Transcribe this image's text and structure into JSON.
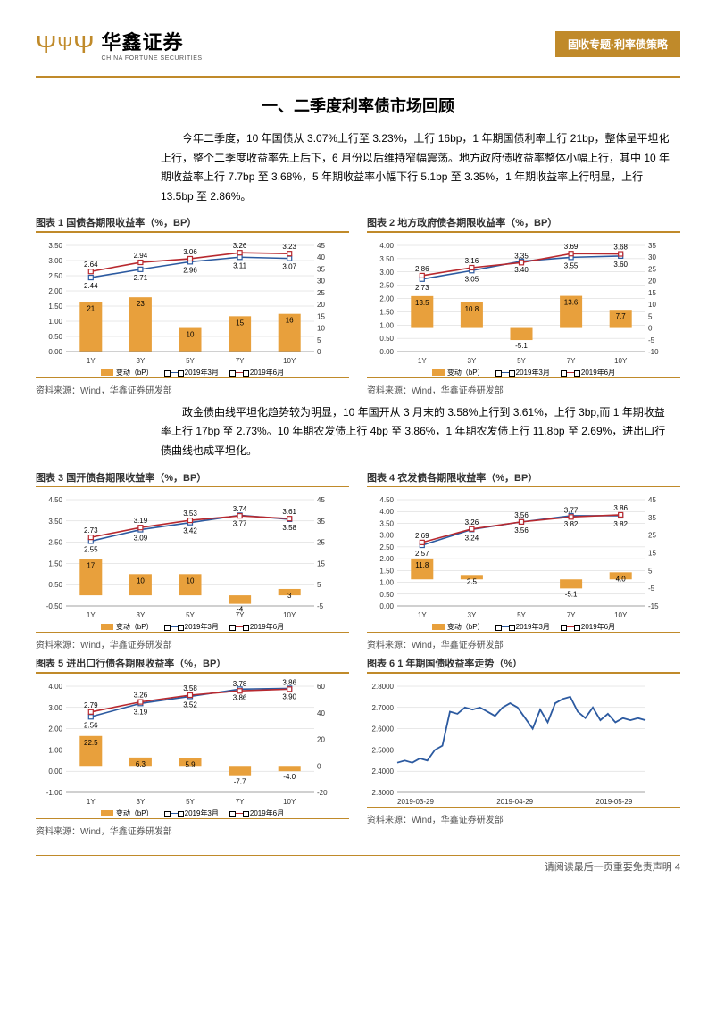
{
  "header": {
    "logo_cn": "华鑫证券",
    "logo_en": "CHINA FORTUNE SECURITIES",
    "tag": "固收专题·利率债策略"
  },
  "section_title": "一、二季度利率债市场回顾",
  "para1": "今年二季度，10 年国债从 3.07%上行至 3.23%，上行 16bp，1 年期国债利率上行 21bp，整体呈平坦化上行，整个二季度收益率先上后下，6 月份以后维持窄幅震荡。地方政府债收益率整体小幅上行，其中 10 年期收益率上行 7.7bp 至 3.68%，5 年期收益率小幅下行 5.1bp 至 3.35%，1 年期收益率上行明显，上行 13.5bp 至 2.86%。",
  "para2": "政金债曲线平坦化趋势较为明显，10 年国开从 3 月末的 3.58%上行到 3.61%，上行 3bp,而 1 年期收益率上行 17bp 至 2.73%。10 年期农发债上行 4bp 至 3.86%，1 年期农发债上行 11.8bp 至 2.69%，进出口行债曲线也成平坦化。",
  "colors": {
    "brand": "#c08a2a",
    "bar": "#e8a03c",
    "line_blue": "#2c5aa0",
    "line_red": "#b8292f",
    "grid": "#d0d0d0",
    "axis": "#888",
    "txt": "#333"
  },
  "legend": {
    "bar": "变动（bP）",
    "blue": "2019年3月",
    "red": "2019年6月"
  },
  "source": "资料来源：Wind，华鑫证券研发部",
  "footer": "请阅读最后一页重要免责声明 4",
  "charts": [
    {
      "id": "c1",
      "title": "图表 1  国债各期限收益率（%，BP）",
      "x": [
        "1Y",
        "3Y",
        "5Y",
        "7Y",
        "10Y"
      ],
      "bar_vals": [
        21,
        23,
        10,
        15,
        16
      ],
      "bar_labels": [
        "21",
        "23",
        "10",
        "15",
        "16"
      ],
      "blue": [
        2.44,
        2.71,
        2.96,
        3.11,
        3.07
      ],
      "blue_labels": [
        "2.44",
        "2.71",
        "2.96",
        "3.11",
        "3.07"
      ],
      "red": [
        2.64,
        2.94,
        3.06,
        3.26,
        3.23
      ],
      "red_labels": [
        "2.64",
        "2.94",
        "3.06",
        "3.26",
        "3.23"
      ],
      "ly": {
        "min": 0,
        "max": 3.5,
        "ticks": [
          0.0,
          0.5,
          1.0,
          1.5,
          2.0,
          2.5,
          3.0,
          3.5
        ]
      },
      "ry": {
        "min": 0,
        "max": 45,
        "ticks": [
          0,
          5,
          10,
          15,
          20,
          25,
          30,
          35,
          40,
          45
        ]
      }
    },
    {
      "id": "c2",
      "title": "图表 2 地方政府债各期限收益率（%，BP）",
      "x": [
        "1Y",
        "3Y",
        "5Y",
        "7Y",
        "10Y"
      ],
      "bar_vals": [
        13.5,
        10.8,
        -5.1,
        13.6,
        7.7
      ],
      "bar_labels": [
        "13.5",
        "10.8",
        "-5.1",
        "13.6",
        "7.7"
      ],
      "blue": [
        2.73,
        3.05,
        3.4,
        3.55,
        3.6
      ],
      "blue_labels": [
        "2.73",
        "3.05",
        "3.40",
        "3.55",
        "3.60"
      ],
      "red": [
        2.86,
        3.16,
        3.35,
        3.69,
        3.68
      ],
      "red_labels": [
        "2.86",
        "3.16",
        "3.35",
        "3.69",
        "3.68"
      ],
      "ly": {
        "min": 0,
        "max": 4.0,
        "ticks": [
          0.0,
          0.5,
          1.0,
          1.5,
          2.0,
          2.5,
          3.0,
          3.5,
          4.0
        ]
      },
      "ry": {
        "min": -10,
        "max": 35,
        "ticks": [
          -10.0,
          -5.0,
          0.0,
          5.0,
          10.0,
          15.0,
          20.0,
          25.0,
          30.0,
          35.0
        ]
      }
    },
    {
      "id": "c3",
      "title": "图表 3  国开债各期限收益率（%，BP）",
      "x": [
        "1Y",
        "3Y",
        "5Y",
        "7Y",
        "10Y"
      ],
      "bar_vals": [
        17,
        10,
        10,
        -4,
        3
      ],
      "bar_labels": [
        "17",
        "10",
        "10",
        "-4",
        "3"
      ],
      "blue": [
        2.55,
        3.09,
        3.42,
        3.77,
        3.58
      ],
      "blue_labels": [
        "2.55",
        "3.09",
        "3.42",
        "3.77",
        "3.58"
      ],
      "red": [
        2.73,
        3.19,
        3.53,
        3.74,
        3.61
      ],
      "red_labels": [
        "2.73",
        "3.19",
        "3.53",
        "3.74",
        "3.61"
      ],
      "ly": {
        "min": -0.5,
        "max": 4.5,
        "ticks": [
          -0.5,
          0.5,
          1.5,
          2.5,
          3.5,
          4.5
        ]
      },
      "ry": {
        "min": -5,
        "max": 45,
        "ticks": [
          -5,
          5,
          15,
          25,
          35,
          45
        ]
      }
    },
    {
      "id": "c4",
      "title": "图表 4  农发债各期限收益率（%，BP）",
      "x": [
        "1Y",
        "3Y",
        "5Y",
        "7Y",
        "10Y"
      ],
      "bar_vals": [
        11.8,
        2.5,
        0,
        -5.1,
        4.0
      ],
      "bar_labels": [
        "11.8",
        "2.5",
        "",
        "-5.1",
        "4.0"
      ],
      "blue": [
        2.57,
        3.24,
        3.56,
        3.82,
        3.82
      ],
      "blue_labels": [
        "2.57",
        "3.24",
        "3.56",
        "3.82",
        "3.82"
      ],
      "red": [
        2.69,
        3.26,
        3.56,
        3.77,
        3.86
      ],
      "red_labels": [
        "2.69",
        "3.26",
        "3.56",
        "3.77",
        "3.86"
      ],
      "ly": {
        "min": 0,
        "max": 4.5,
        "ticks": [
          0.0,
          0.5,
          1.0,
          1.5,
          2.0,
          2.5,
          3.0,
          3.5,
          4.0,
          4.5
        ]
      },
      "ry": {
        "min": -15,
        "max": 45,
        "ticks": [
          -15.0,
          -5.0,
          5.0,
          15.0,
          25.0,
          35.0,
          45.0
        ]
      }
    },
    {
      "id": "c5",
      "title": "图表 5  进出口行债各期限收益率（%，BP）",
      "x": [
        "1Y",
        "3Y",
        "5Y",
        "7Y",
        "10Y"
      ],
      "bar_vals": [
        22.5,
        6.3,
        5.9,
        -7.7,
        -4.0
      ],
      "bar_labels": [
        "22.5",
        "6.3",
        "5.9",
        "-7.7",
        "-4.0"
      ],
      "blue": [
        2.56,
        3.19,
        3.52,
        3.86,
        3.9
      ],
      "blue_labels": [
        "2.56",
        "3.19",
        "3.52",
        "3.86",
        "3.90"
      ],
      "red": [
        2.79,
        3.26,
        3.58,
        3.78,
        3.86
      ],
      "red_labels": [
        "2.79",
        "3.26",
        "3.58",
        "3.78",
        "3.86"
      ],
      "ly": {
        "min": -1.0,
        "max": 4.0,
        "ticks": [
          -1.0,
          0.0,
          1.0,
          2.0,
          3.0,
          4.0
        ]
      },
      "ry": {
        "min": -20,
        "max": 60,
        "ticks": [
          -20.0,
          0.0,
          20.0,
          40.0,
          60.0
        ]
      }
    }
  ],
  "chart6": {
    "id": "c6",
    "title": "图表 6  1 年期国债收益率走势（%）",
    "x_labels": [
      "2019-03-29",
      "2019-04-29",
      "2019-05-29"
    ],
    "ly": {
      "min": 2.3,
      "max": 2.8,
      "ticks": [
        "2.3000",
        "2.4000",
        "2.5000",
        "2.6000",
        "2.7000",
        "2.8000"
      ]
    },
    "series": [
      2.44,
      2.45,
      2.44,
      2.46,
      2.45,
      2.5,
      2.52,
      2.68,
      2.67,
      2.7,
      2.69,
      2.7,
      2.68,
      2.66,
      2.7,
      2.72,
      2.7,
      2.65,
      2.6,
      2.69,
      2.63,
      2.72,
      2.74,
      2.75,
      2.68,
      2.65,
      2.7,
      2.64,
      2.67,
      2.63,
      2.65,
      2.64,
      2.65,
      2.64
    ]
  }
}
